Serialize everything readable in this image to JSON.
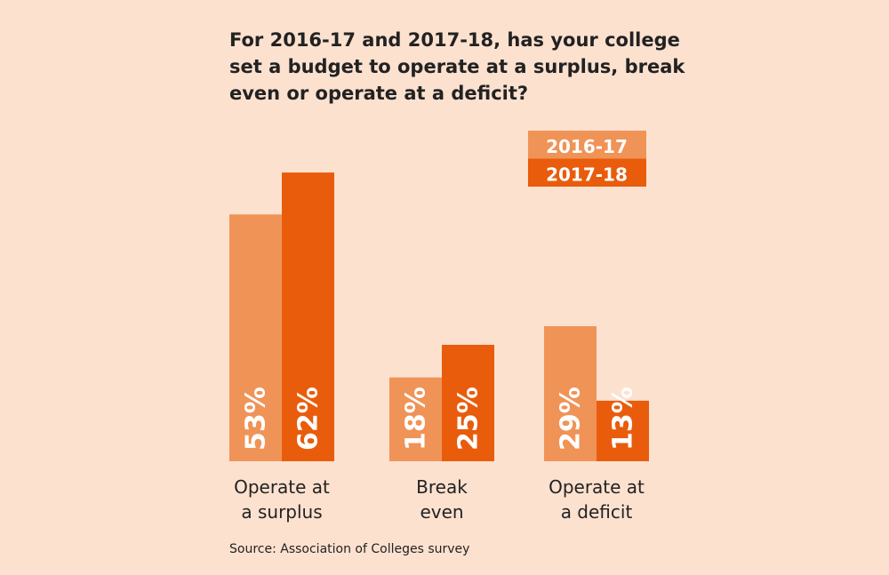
{
  "chart_data": {
    "type": "bar",
    "title": "For 2016-17 and 2017-18, has your college set a budget to operate at a surplus, break even or operate at a deficit?",
    "categories": [
      [
        "Operate at",
        "a surplus"
      ],
      [
        "Break",
        "even"
      ],
      [
        "Operate at",
        "a deficit"
      ]
    ],
    "series": [
      {
        "name": "2016-17",
        "values": [
          53,
          18,
          29
        ],
        "labels": [
          "53%",
          "18%",
          "29%"
        ],
        "color": "#F09357"
      },
      {
        "name": "2017-18",
        "values": [
          62,
          25,
          13
        ],
        "labels": [
          "62%",
          "25%",
          "13%"
        ],
        "color": "#E95C0C"
      }
    ],
    "ylim": [
      0,
      100
    ],
    "grid": false,
    "legend": "top-right",
    "source": "Source: Association of Colleges survey"
  }
}
